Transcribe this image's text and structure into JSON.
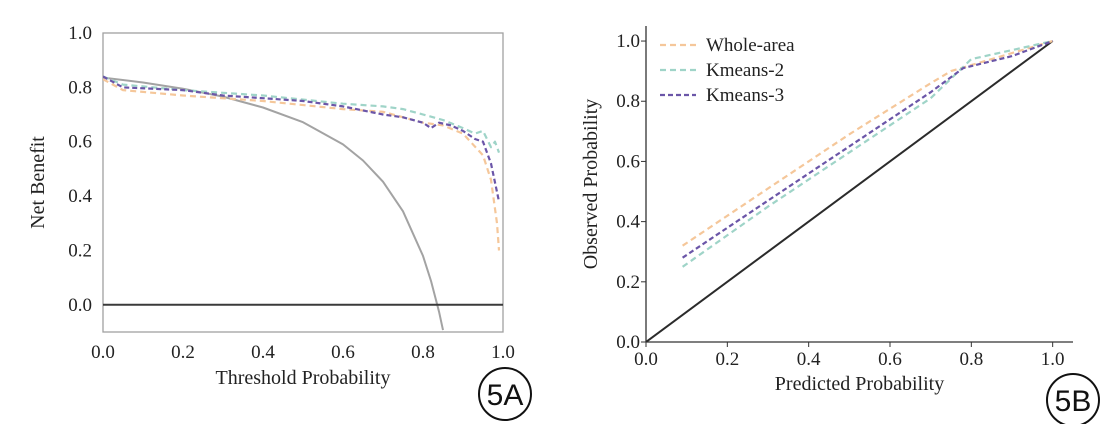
{
  "chart_data": [
    {
      "type": "line",
      "panel_label": "5A",
      "xlabel": "Threshold Probability",
      "ylabel": "Net Benefit",
      "xlim": [
        0.0,
        1.0
      ],
      "ylim": [
        -0.1,
        1.0
      ],
      "xticks": [
        "0.0",
        "0.2",
        "0.4",
        "0.6",
        "0.8",
        "1.0"
      ],
      "yticks": [
        "1.0",
        "0.8",
        "0.6",
        "0.4",
        "0.2",
        "0.0"
      ],
      "grid": false,
      "series": [
        {
          "key": "treat_all",
          "color": "#a3a3a3",
          "dash": "none",
          "x": [
            0,
            0.1,
            0.2,
            0.3,
            0.4,
            0.5,
            0.6,
            0.65,
            0.7,
            0.75,
            0.8,
            0.82,
            0.84,
            0.85
          ],
          "y": [
            0.836,
            0.818,
            0.795,
            0.766,
            0.726,
            0.672,
            0.59,
            0.531,
            0.453,
            0.344,
            0.18,
            0.088,
            -0.025,
            -0.093
          ]
        },
        {
          "key": "treat_none",
          "color": "#3a3a3a",
          "dash": "none",
          "x": [
            0,
            1
          ],
          "y": [
            0,
            0
          ]
        },
        {
          "key": "whole_area",
          "color": "#f5c79a",
          "dash": "6,4",
          "x": [
            0,
            0.05,
            0.2,
            0.4,
            0.6,
            0.7,
            0.8,
            0.85,
            0.9,
            0.95,
            0.97,
            0.985,
            0.99
          ],
          "y": [
            0.83,
            0.79,
            0.77,
            0.75,
            0.72,
            0.71,
            0.67,
            0.66,
            0.63,
            0.55,
            0.46,
            0.3,
            0.2
          ]
        },
        {
          "key": "kmeans_2",
          "color": "#9fd4c8",
          "dash": "6,4",
          "x": [
            0,
            0.05,
            0.2,
            0.4,
            0.6,
            0.7,
            0.75,
            0.8,
            0.85,
            0.9,
            0.93,
            0.95,
            0.97,
            0.98,
            0.99
          ],
          "y": [
            0.84,
            0.81,
            0.79,
            0.77,
            0.74,
            0.73,
            0.72,
            0.7,
            0.68,
            0.65,
            0.63,
            0.64,
            0.58,
            0.6,
            0.56
          ]
        },
        {
          "key": "kmeans_3",
          "color": "#6b56a8",
          "dash": "5,3",
          "x": [
            0,
            0.05,
            0.2,
            0.3,
            0.4,
            0.5,
            0.6,
            0.7,
            0.75,
            0.8,
            0.82,
            0.84,
            0.87,
            0.9,
            0.93,
            0.95,
            0.97,
            0.98,
            0.99
          ],
          "y": [
            0.84,
            0.8,
            0.79,
            0.77,
            0.76,
            0.75,
            0.73,
            0.7,
            0.69,
            0.67,
            0.65,
            0.67,
            0.66,
            0.64,
            0.61,
            0.6,
            0.52,
            0.45,
            0.38
          ]
        }
      ]
    },
    {
      "type": "line",
      "panel_label": "5B",
      "xlabel": "Predicted Probability",
      "ylabel": "Observed Probability",
      "xlim": [
        0.0,
        1.05
      ],
      "ylim": [
        0.0,
        1.05
      ],
      "xticks": [
        "0.0",
        "0.2",
        "0.4",
        "0.6",
        "0.8",
        "1.0"
      ],
      "yticks": [
        "1.0",
        "0.8",
        "0.6",
        "0.4",
        "0.2",
        "0.0"
      ],
      "grid": false,
      "legend_position": "top-left",
      "legend": [
        "Whole-area",
        "Kmeans-2",
        "Kmeans-3"
      ],
      "series": [
        {
          "key": "ideal",
          "color": "#2b2b2b",
          "dash": "none",
          "x": [
            0,
            1
          ],
          "y": [
            0,
            1
          ]
        },
        {
          "key": "whole_area",
          "name": "Whole-area",
          "color": "#f5c79a",
          "dash": "6,4",
          "x": [
            0.09,
            0.3,
            0.5,
            0.7,
            0.75,
            0.8,
            0.9,
            1.0
          ],
          "y": [
            0.32,
            0.51,
            0.69,
            0.86,
            0.9,
            0.92,
            0.96,
            1.0
          ]
        },
        {
          "key": "kmeans_2",
          "name": "Kmeans-2",
          "color": "#9fd4c8",
          "dash": "6,4",
          "x": [
            0.09,
            0.3,
            0.5,
            0.7,
            0.8,
            0.9,
            1.0
          ],
          "y": [
            0.25,
            0.45,
            0.63,
            0.81,
            0.94,
            0.97,
            1.0
          ]
        },
        {
          "key": "kmeans_3",
          "name": "Kmeans-3",
          "color": "#6b56a8",
          "dash": "5,3",
          "x": [
            0.09,
            0.3,
            0.5,
            0.7,
            0.78,
            0.9,
            1.0
          ],
          "y": [
            0.28,
            0.47,
            0.65,
            0.83,
            0.91,
            0.95,
            1.0
          ]
        }
      ]
    }
  ]
}
